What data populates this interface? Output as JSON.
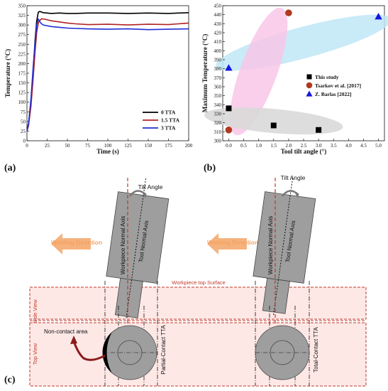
{
  "chart_data": [
    {
      "panel": "(a)",
      "type": "line",
      "xlabel": "Time (s)",
      "ylabel": "Temperature (°C)",
      "xlim": [
        0,
        200
      ],
      "ylim": [
        0,
        350
      ],
      "xticks": [
        "0",
        "25",
        "50",
        "75",
        "100",
        "125",
        "150",
        "175",
        "200"
      ],
      "yticks": [
        "0",
        "25",
        "50",
        "75",
        "100",
        "125",
        "150",
        "175",
        "200",
        "225",
        "250",
        "275",
        "300",
        "325",
        "350"
      ],
      "legend_position": "bottom-right",
      "series": [
        {
          "name": "0 TTA",
          "color": "#000000",
          "x": [
            0,
            2,
            5,
            8,
            10,
            12,
            14,
            16,
            20,
            25,
            30,
            40,
            50,
            60,
            75,
            100,
            125,
            150,
            175,
            200
          ],
          "y": [
            30,
            45,
            100,
            190,
            260,
            310,
            333,
            335,
            332,
            331,
            330,
            331,
            330,
            330,
            331,
            331,
            330,
            331,
            330,
            332
          ]
        },
        {
          "name": "1.5 TTA",
          "color": "#b22222",
          "x": [
            0,
            2,
            5,
            8,
            10,
            12,
            14,
            16,
            18,
            22,
            30,
            40,
            50,
            60,
            75,
            100,
            125,
            150,
            175,
            200
          ],
          "y": [
            25,
            40,
            90,
            170,
            230,
            280,
            305,
            312,
            316,
            315,
            311,
            308,
            305,
            303,
            301,
            302,
            300,
            302,
            301,
            305
          ]
        },
        {
          "name": "3 TTA",
          "color": "#1f2fd6",
          "x": [
            0,
            2,
            5,
            8,
            10,
            12,
            14,
            15,
            17,
            20,
            30,
            40,
            50,
            60,
            75,
            100,
            125,
            150,
            175,
            200
          ],
          "y": [
            25,
            45,
            110,
            200,
            250,
            300,
            315,
            312,
            305,
            300,
            296,
            294,
            292,
            291,
            290,
            289,
            290,
            288,
            289,
            290
          ]
        }
      ]
    },
    {
      "panel": "(b)",
      "type": "scatter",
      "xlabel": "Tool tilt angle (°)",
      "ylabel": "Maximum Temperature (°C)",
      "xlim": [
        0,
        5
      ],
      "ylim": [
        300,
        450
      ],
      "xticks": [
        "0.0",
        "0.5",
        "1.0",
        "1.5",
        "2.0",
        "2.5",
        "3.0",
        "3.5",
        "4.0",
        "4.5",
        "5.0"
      ],
      "yticks": [
        "300",
        "310",
        "320",
        "330",
        "340",
        "350",
        "360",
        "370",
        "380",
        "390",
        "400",
        "410",
        "420",
        "430",
        "440",
        "450"
      ],
      "legend_position": "center-right",
      "series": [
        {
          "name": "This study",
          "marker": "square",
          "color": "#000000",
          "x": [
            0,
            1.5,
            3
          ],
          "y": [
            336,
            317,
            312
          ]
        },
        {
          "name": "Tsarkov et al. [2017]",
          "marker": "circle",
          "color": "#b03a1e",
          "x": [
            0,
            2
          ],
          "y": [
            312,
            442
          ]
        },
        {
          "name": "Z. Barlas [2022]",
          "marker": "triangle",
          "color": "#1616e0",
          "x": [
            0,
            5
          ],
          "y": [
            381,
            438
          ]
        }
      ]
    }
  ],
  "panels": {
    "a": "(a)",
    "b": "(b)",
    "c": "(c)"
  },
  "diagram": {
    "tilt_angle": "Tilt Angle",
    "workpiece_normal_axis": "Workpiece Normal Axis",
    "tool_normal_axis": "Tool Normal Axis",
    "welding_direction": "Welding Direction",
    "workpiece_top_surface": "Workpiece top Surface",
    "side_view": "Side View",
    "top_view": "Top View",
    "non_contact_area": "Non-contact area",
    "partial_contact": "Partial-Contact TTA",
    "total_contact": "Total-Contact TTA"
  },
  "colors": {
    "accent_orange": "#f4a262",
    "dash_red": "#c0392b",
    "ellipse_pink": "#f8c7e8",
    "ellipse_blue": "#bfe6f6",
    "ellipse_gray": "#d9d9d9",
    "tool_gray": "#9e9e9e"
  }
}
